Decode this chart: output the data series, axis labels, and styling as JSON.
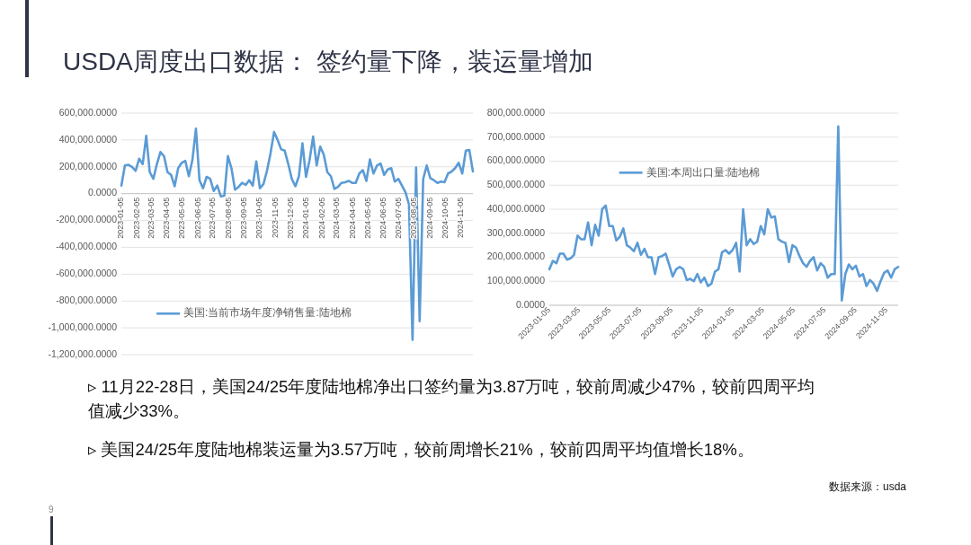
{
  "chart_data": [
    {
      "type": "other",
      "title": "USDA周度出口数据： 签约量下降，装运量增加",
      "annotations": [
        "▹ 11月22-28日，美国24/25年度陆地棉净出口签约量为3.87万吨，较前周减少47%，较前四周平均值减少33%。",
        "▹ 美国24/25年度陆地棉装运量为3.57万吨，较前周增长21%，较前四周平均值增长18%。",
        "数据来源：usda",
        "9"
      ]
    },
    {
      "type": "line",
      "grid": "y",
      "legend": "bottom",
      "marker": "none",
      "line_style": "solid",
      "xlim": [
        "2023-01-05",
        "2024-11-28"
      ],
      "xticks": [
        "2023-01-05",
        "2023-02-05",
        "2023-03-05",
        "2023-04-05",
        "2023-05-05",
        "2023-06-05",
        "2023-07-05",
        "2023-08-05",
        "2023-09-05",
        "2023-10-05",
        "2023-11-05",
        "2023-12-05",
        "2024-01-05",
        "2024-02-05",
        "2024-03-05",
        "2024-04-05",
        "2024-05-05",
        "2024-06-05",
        "2024-07-05",
        "2024-08-05",
        "2024-09-05",
        "2024-10-05",
        "2024-11-05"
      ],
      "ylim": [
        -1200000,
        600000
      ],
      "yticks": [
        {
          "value": -1200000,
          "label": "-1,200,000.0000"
        },
        {
          "value": -1000000,
          "label": "-1,000,000.0000"
        },
        {
          "value": -800000,
          "label": "-800,000.0000"
        },
        {
          "value": -600000,
          "label": "-600,000.0000"
        },
        {
          "value": -400000,
          "label": "-400,000.0000"
        },
        {
          "value": -200000,
          "label": "-200,000.0000"
        },
        {
          "value": 0,
          "label": "0.0000"
        },
        {
          "value": 200000,
          "label": "200,000.0000"
        },
        {
          "value": 400000,
          "label": "400,000.0000"
        },
        {
          "value": 600000,
          "label": "600,000.0000"
        }
      ],
      "x": [
        "2023-01-05",
        "2023-01-12",
        "2023-01-19",
        "2023-01-26",
        "2023-02-02",
        "2023-02-09",
        "2023-02-16",
        "2023-02-23",
        "2023-03-02",
        "2023-03-09",
        "2023-03-16",
        "2023-03-23",
        "2023-03-30",
        "2023-04-06",
        "2023-04-13",
        "2023-04-20",
        "2023-04-27",
        "2023-05-04",
        "2023-05-11",
        "2023-05-18",
        "2023-05-25",
        "2023-06-01",
        "2023-06-08",
        "2023-06-15",
        "2023-06-22",
        "2023-06-29",
        "2023-07-06",
        "2023-07-13",
        "2023-07-20",
        "2023-07-27",
        "2023-08-03",
        "2023-08-10",
        "2023-08-17",
        "2023-08-24",
        "2023-08-31",
        "2023-09-07",
        "2023-09-14",
        "2023-09-21",
        "2023-09-28",
        "2023-10-05",
        "2023-10-12",
        "2023-10-19",
        "2023-10-26",
        "2023-11-02",
        "2023-11-09",
        "2023-11-16",
        "2023-11-23",
        "2023-11-30",
        "2023-12-07",
        "2023-12-14",
        "2023-12-21",
        "2023-12-28",
        "2024-01-04",
        "2024-01-11",
        "2024-01-18",
        "2024-01-25",
        "2024-02-01",
        "2024-02-08",
        "2024-02-15",
        "2024-02-22",
        "2024-02-29",
        "2024-03-07",
        "2024-03-14",
        "2024-03-21",
        "2024-03-28",
        "2024-04-04",
        "2024-04-11",
        "2024-04-18",
        "2024-04-25",
        "2024-05-02",
        "2024-05-09",
        "2024-05-16",
        "2024-05-23",
        "2024-05-30",
        "2024-06-06",
        "2024-06-13",
        "2024-06-20",
        "2024-06-27",
        "2024-07-04",
        "2024-07-11",
        "2024-07-18",
        "2024-07-25",
        "2024-08-01",
        "2024-08-08",
        "2024-08-15",
        "2024-08-22",
        "2024-08-29",
        "2024-09-05",
        "2024-09-12",
        "2024-09-19",
        "2024-09-26",
        "2024-10-03",
        "2024-10-10",
        "2024-10-17",
        "2024-10-24",
        "2024-10-31",
        "2024-11-07",
        "2024-11-14",
        "2024-11-21",
        "2024-11-28"
      ],
      "series": [
        {
          "name": "美国:当前市场年度净销售量:陆地棉",
          "color": "#5b9bd5",
          "values": [
            60000,
            210000,
            215000,
            200000,
            170000,
            260000,
            220000,
            430000,
            160000,
            110000,
            220000,
            310000,
            280000,
            160000,
            140000,
            55000,
            190000,
            230000,
            245000,
            130000,
            250000,
            485000,
            100000,
            40000,
            125000,
            110000,
            20000,
            60000,
            -20000,
            -15000,
            280000,
            190000,
            30000,
            50000,
            80000,
            65000,
            100000,
            60000,
            240000,
            40000,
            70000,
            170000,
            300000,
            460000,
            400000,
            330000,
            320000,
            220000,
            110000,
            55000,
            130000,
            375000,
            125000,
            250000,
            425000,
            210000,
            350000,
            290000,
            160000,
            130000,
            35000,
            50000,
            80000,
            85000,
            95000,
            80000,
            80000,
            150000,
            175000,
            95000,
            255000,
            150000,
            210000,
            225000,
            140000,
            180000,
            190000,
            90000,
            110000,
            60000,
            10000,
            -80000,
            -1090000,
            195000,
            -950000,
            110000,
            210000,
            115000,
            100000,
            80000,
            90000,
            85000,
            150000,
            165000,
            190000,
            230000,
            150000,
            320000,
            325000,
            165000
          ]
        }
      ]
    },
    {
      "type": "line",
      "grid": "y",
      "legend": "top",
      "marker": "none",
      "line_style": "solid",
      "xlim": [
        "2023-01-05",
        "2024-11-28"
      ],
      "xticks": [
        "2023-01-05",
        "2023-03-05",
        "2023-05-05",
        "2023-07-05",
        "2023-09-05",
        "2023-11-05",
        "2024-01-05",
        "2024-03-05",
        "2024-05-05",
        "2024-07-05",
        "2024-09-05",
        "2024-11-05"
      ],
      "ylim": [
        0,
        800000
      ],
      "yticks": [
        {
          "value": 0,
          "label": "0.0000"
        },
        {
          "value": 100000,
          "label": "100,000.0000"
        },
        {
          "value": 200000,
          "label": "200,000.0000"
        },
        {
          "value": 300000,
          "label": "300,000.0000"
        },
        {
          "value": 400000,
          "label": "400,000.0000"
        },
        {
          "value": 500000,
          "label": "500,000.0000"
        },
        {
          "value": 600000,
          "label": "600,000.0000"
        },
        {
          "value": 700000,
          "label": "700,000.0000"
        },
        {
          "value": 800000,
          "label": "800,000.0000"
        }
      ],
      "x": [
        "2023-01-05",
        "2023-01-12",
        "2023-01-19",
        "2023-01-26",
        "2023-02-02",
        "2023-02-09",
        "2023-02-16",
        "2023-02-23",
        "2023-03-02",
        "2023-03-09",
        "2023-03-16",
        "2023-03-23",
        "2023-03-30",
        "2023-04-06",
        "2023-04-13",
        "2023-04-20",
        "2023-04-27",
        "2023-05-04",
        "2023-05-11",
        "2023-05-18",
        "2023-05-25",
        "2023-06-01",
        "2023-06-08",
        "2023-06-15",
        "2023-06-22",
        "2023-06-29",
        "2023-07-06",
        "2023-07-13",
        "2023-07-20",
        "2023-07-27",
        "2023-08-03",
        "2023-08-10",
        "2023-08-17",
        "2023-08-24",
        "2023-08-31",
        "2023-09-07",
        "2023-09-14",
        "2023-09-21",
        "2023-09-28",
        "2023-10-05",
        "2023-10-12",
        "2023-10-19",
        "2023-10-26",
        "2023-11-02",
        "2023-11-09",
        "2023-11-16",
        "2023-11-23",
        "2023-11-30",
        "2023-12-07",
        "2023-12-14",
        "2023-12-21",
        "2023-12-28",
        "2024-01-04",
        "2024-01-11",
        "2024-01-18",
        "2024-01-25",
        "2024-02-01",
        "2024-02-08",
        "2024-02-15",
        "2024-02-22",
        "2024-02-29",
        "2024-03-07",
        "2024-03-14",
        "2024-03-21",
        "2024-03-28",
        "2024-04-04",
        "2024-04-11",
        "2024-04-18",
        "2024-04-25",
        "2024-05-02",
        "2024-05-09",
        "2024-05-16",
        "2024-05-23",
        "2024-05-30",
        "2024-06-06",
        "2024-06-13",
        "2024-06-20",
        "2024-06-27",
        "2024-07-04",
        "2024-07-11",
        "2024-07-18",
        "2024-07-25",
        "2024-08-01",
        "2024-08-08",
        "2024-08-15",
        "2024-08-22",
        "2024-08-29",
        "2024-09-05",
        "2024-09-12",
        "2024-09-19",
        "2024-09-26",
        "2024-10-03",
        "2024-10-10",
        "2024-10-17",
        "2024-10-24",
        "2024-10-31",
        "2024-11-07",
        "2024-11-14",
        "2024-11-21",
        "2024-11-28"
      ],
      "series": [
        {
          "name": "美国:本周出口量:陆地棉",
          "color": "#5b9bd5",
          "values": [
            150000,
            185000,
            175000,
            215000,
            215000,
            190000,
            195000,
            210000,
            290000,
            275000,
            275000,
            345000,
            250000,
            335000,
            290000,
            400000,
            415000,
            330000,
            330000,
            270000,
            285000,
            320000,
            250000,
            240000,
            225000,
            260000,
            210000,
            235000,
            200000,
            200000,
            130000,
            200000,
            205000,
            215000,
            170000,
            120000,
            150000,
            160000,
            150000,
            105000,
            110000,
            100000,
            130000,
            95000,
            115000,
            80000,
            90000,
            140000,
            150000,
            220000,
            230000,
            215000,
            230000,
            260000,
            140000,
            400000,
            250000,
            275000,
            255000,
            265000,
            330000,
            295000,
            400000,
            365000,
            370000,
            275000,
            265000,
            260000,
            180000,
            250000,
            240000,
            205000,
            175000,
            160000,
            185000,
            200000,
            145000,
            175000,
            160000,
            115000,
            130000,
            130000,
            745000,
            20000,
            130000,
            170000,
            150000,
            165000,
            120000,
            130000,
            80000,
            105000,
            90000,
            60000,
            100000,
            135000,
            145000,
            115000,
            150000,
            160000
          ]
        }
      ]
    }
  ]
}
